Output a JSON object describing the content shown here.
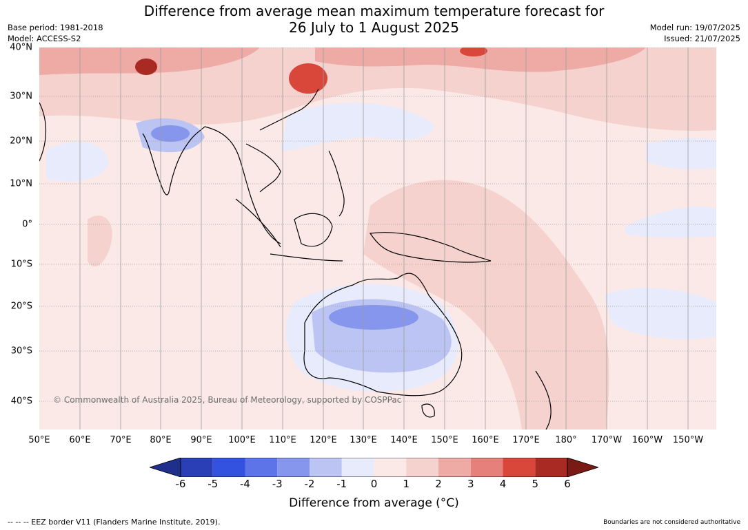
{
  "header": {
    "title_line1": "Difference from average mean maximum temperature forecast for",
    "title_line2": "26 July to 1 August 2025",
    "base_period": "Base period: 1981-2018",
    "model": "Model: ACCESS-S2",
    "model_run": "Model run: 19/07/2025",
    "issued": "Issued: 21/07/2025"
  },
  "map": {
    "lat_labels": [
      "40°N",
      "30°N",
      "20°N",
      "10°N",
      "0°",
      "10°S",
      "20°S",
      "30°S",
      "40°S"
    ],
    "lon_labels": [
      "50°E",
      "60°E",
      "70°E",
      "80°E",
      "90°E",
      "100°E",
      "110°E",
      "120°E",
      "130°E",
      "140°E",
      "150°E",
      "160°E",
      "170°E",
      "180°",
      "170°W",
      "160°W",
      "150°W"
    ],
    "copyright": "© Commonwealth of Australia 2025, Bureau of Meteorology, supported by COSPPac",
    "background_color": "#fbe9e7"
  },
  "legend": {
    "ticks": [
      "-6",
      "-5",
      "-4",
      "-3",
      "-2",
      "-1",
      "0",
      "1",
      "2",
      "3",
      "4",
      "5",
      "6"
    ],
    "colors": [
      "#1f2f8c",
      "#2a3fb5",
      "#3452e0",
      "#5c74e8",
      "#8596ec",
      "#bcc4f4",
      "#e8ebfb",
      "#fbe9e7",
      "#f5d2ce",
      "#eeaaa5",
      "#e6807a",
      "#d9473b",
      "#a82a22",
      "#7a1a14"
    ],
    "title": "Difference from average (°C)"
  },
  "footer": {
    "eez_note": "--  --  -- EEZ border V11 (Flanders Marine Institute, 2019).",
    "boundaries_note": "Boundaries are not considered authoritative"
  }
}
